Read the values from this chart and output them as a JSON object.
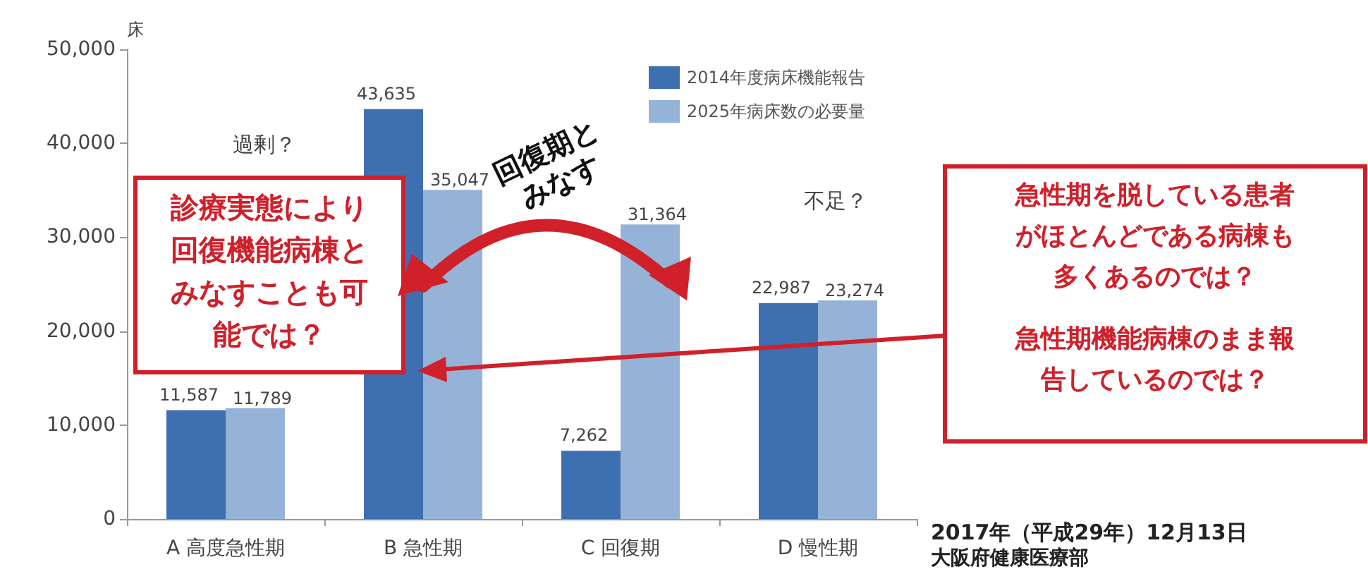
{
  "chart_data": {
    "type": "bar",
    "ylabel": "床",
    "categories": [
      "A 高度急性期",
      "B 急性期",
      "C 回復期",
      "D 慢性期"
    ],
    "series": [
      {
        "name": "2014年度病床機能報告",
        "color": "#3e6fb0",
        "values": [
          11587,
          43635,
          7262,
          22987
        ],
        "value_labels": [
          "11,587",
          "43,635",
          "7,262",
          "22,987"
        ]
      },
      {
        "name": "2025年病床数の必要量",
        "color": "#95b3d7",
        "values": [
          11789,
          35047,
          31364,
          23274
        ],
        "value_labels": [
          "11,789",
          "35,047",
          "31,364",
          "23,274"
        ]
      }
    ],
    "ylim": [
      0,
      50000
    ],
    "yticks": [
      0,
      {
        "value": 10000,
        "label": "10,000"
      },
      {
        "value": 20000,
        "label": "20,000"
      },
      {
        "value": 30000,
        "label": "30,000"
      },
      {
        "value": 40000,
        "label": "40,000"
      },
      {
        "value": 50000,
        "label": "50,000"
      }
    ],
    "grid": false,
    "legend": "top",
    "annotations": [
      "過剰？",
      "不足？",
      "診療実態により回復機能病棟とみなすことも可能では？",
      "回復期とみなす",
      "急性期を脱している患者がほとんどである病棟も多くあるのでは？",
      "急性期機能病棟のまま報告しているのでは？",
      "2017年（平成29年）12月13日",
      "大阪府健康医療部"
    ]
  }
}
